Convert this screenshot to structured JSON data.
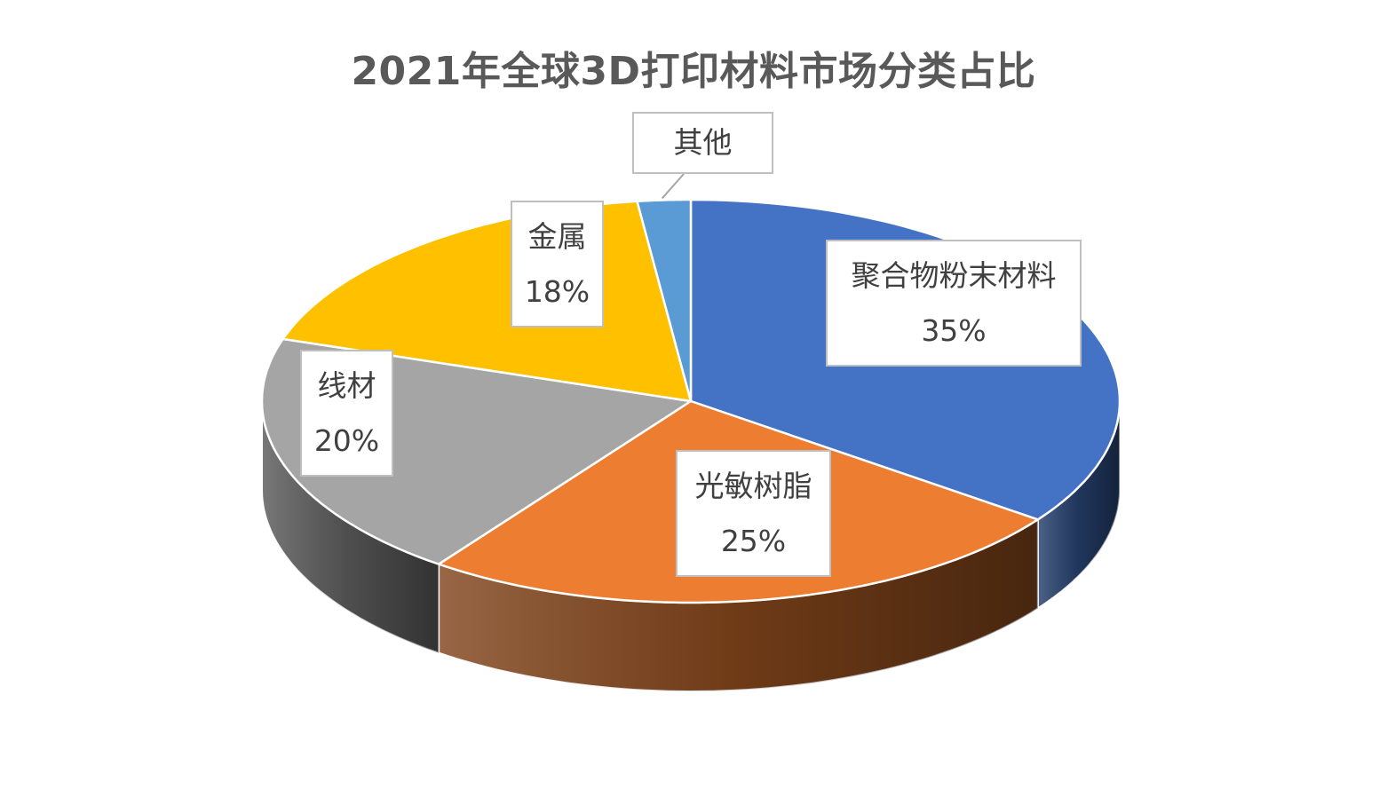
{
  "chart_data": {
    "type": "pie",
    "title": "2021年全球3D打印材料市场分类占比",
    "slices": [
      {
        "name": "聚合物粉末材料",
        "value": 35,
        "percent_label": "35%",
        "color": "#4472C4"
      },
      {
        "name": "光敏树脂",
        "value": 25,
        "percent_label": "25%",
        "color": "#ED7D31"
      },
      {
        "name": "线材",
        "value": 20,
        "percent_label": "20%",
        "color": "#A5A5A5"
      },
      {
        "name": "金属",
        "value": 18,
        "percent_label": "18%",
        "color": "#FFC000"
      },
      {
        "name": "其他",
        "value": 2,
        "percent_label": "",
        "color": "#5B9BD5"
      }
    ],
    "style": "3d-pie",
    "legend": "none"
  }
}
